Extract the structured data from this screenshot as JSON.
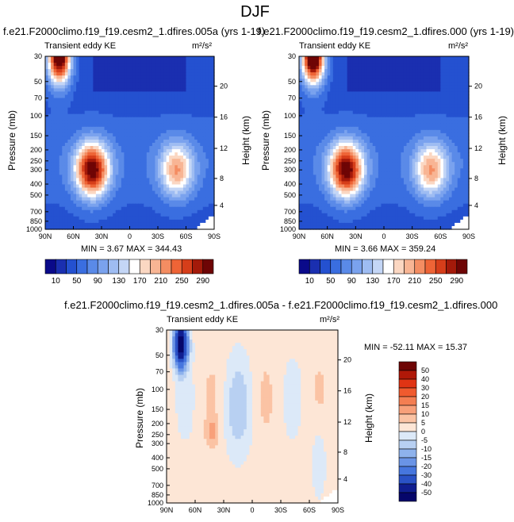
{
  "page": {
    "title": "DJF"
  },
  "panels": [
    {
      "title": "f.e21.F2000climo.f19_f19.cesm2_1.dfires.005a (yrs 1-19)",
      "left_label": "Transient eddy KE",
      "units": "m²/s²",
      "min_max": "MIN =  3.67  MAX = 344.43",
      "ylabel": "Pressure (mb)",
      "ylabel_right": "Height (km)"
    },
    {
      "title": "f.e21.F2000climo.f19_f19.cesm2_1.dfires.000 (yrs 1-19)",
      "left_label": "Transient eddy KE",
      "units": "m²/s²",
      "min_max": "MIN =  3.66  MAX = 359.24",
      "ylabel": "Pressure (mb)",
      "ylabel_right": "Height (km)"
    },
    {
      "title": "f.e21.F2000climo.f19_f19.cesm2_1.dfires.005a - f.e21.F2000climo.f19_f19.cesm2_1.dfires.000",
      "left_label": "Transient eddy KE",
      "units": "m²/s²",
      "min_max": "MIN = -52.11   MAX =  15.37",
      "ylabel": "Pressure (mb)",
      "ylabel_right": "Height (km)"
    }
  ],
  "chart_data": [
    {
      "type": "heatmap",
      "title": "f.e21.F2000climo.f19_f19.cesm2_1.dfires.005a (yrs 1-19)",
      "xlabel": "",
      "ylabel": "Pressure (mb)",
      "x_ticks": [
        "90N",
        "60N",
        "30N",
        "0",
        "30S",
        "60S",
        "90S"
      ],
      "y_ticks": [
        "30",
        "50",
        "70",
        "100",
        "150",
        "200",
        "250",
        "300",
        "400",
        "500",
        "700",
        "850",
        "1000"
      ],
      "y_right_ticks": [
        "20",
        "16",
        "12",
        "8",
        "4"
      ],
      "y_scale": "log",
      "ylim": [
        1000,
        30
      ],
      "xlim": [
        90,
        -90
      ],
      "min": 3.67,
      "max": 344.43,
      "features": [
        {
          "lat": 40,
          "p": 300,
          "value": 290
        },
        {
          "lat": -50,
          "p": 300,
          "value": 190
        },
        {
          "lat": 75,
          "p": 30,
          "value": 340
        }
      ],
      "colorbar_levels": [
        10,
        30,
        50,
        70,
        90,
        110,
        130,
        150,
        170,
        190,
        210,
        230,
        250,
        270,
        290
      ],
      "colorbar_labels": [
        "10",
        "50",
        "90",
        "130",
        "170",
        "210",
        "250",
        "290"
      ]
    },
    {
      "type": "heatmap",
      "title": "f.e21.F2000climo.f19_f19.cesm2_1.dfires.000 (yrs 1-19)",
      "xlabel": "",
      "ylabel": "Pressure (mb)",
      "x_ticks": [
        "90N",
        "60N",
        "30N",
        "0",
        "30S",
        "60S",
        "90S"
      ],
      "y_ticks": [
        "30",
        "50",
        "70",
        "100",
        "150",
        "200",
        "250",
        "300",
        "400",
        "500",
        "700",
        "850",
        "1000"
      ],
      "y_right_ticks": [
        "20",
        "16",
        "12",
        "8",
        "4"
      ],
      "y_scale": "log",
      "ylim": [
        1000,
        30
      ],
      "xlim": [
        90,
        -90
      ],
      "min": 3.66,
      "max": 359.24,
      "features": [
        {
          "lat": 40,
          "p": 300,
          "value": 290
        },
        {
          "lat": -50,
          "p": 300,
          "value": 190
        },
        {
          "lat": 75,
          "p": 30,
          "value": 355
        }
      ],
      "colorbar_levels": [
        10,
        30,
        50,
        70,
        90,
        110,
        130,
        150,
        170,
        190,
        210,
        230,
        250,
        270,
        290
      ],
      "colorbar_labels": [
        "10",
        "50",
        "90",
        "130",
        "170",
        "210",
        "250",
        "290"
      ]
    },
    {
      "type": "heatmap",
      "title": "f.e21.F2000climo.f19_f19.cesm2_1.dfires.005a - f.e21.F2000climo.f19_f19.cesm2_1.dfires.000",
      "xlabel": "",
      "ylabel": "Pressure (mb)",
      "x_ticks": [
        "90N",
        "60N",
        "30N",
        "0",
        "30S",
        "60S",
        "90S"
      ],
      "y_ticks": [
        "30",
        "50",
        "70",
        "100",
        "150",
        "200",
        "250",
        "300",
        "400",
        "500",
        "700",
        "850",
        "1000"
      ],
      "y_right_ticks": [
        "20",
        "16",
        "12",
        "8",
        "4"
      ],
      "y_scale": "log",
      "ylim": [
        1000,
        30
      ],
      "xlim": [
        90,
        -90
      ],
      "min": -52.11,
      "max": 15.37,
      "colorbar_levels": [
        -50,
        -40,
        -30,
        -20,
        -15,
        -10,
        -5,
        0,
        5,
        10,
        15,
        20,
        30,
        40,
        50
      ],
      "colorbar_labels": [
        "50",
        "40",
        "30",
        "20",
        "15",
        "10",
        "5",
        "0",
        "-5",
        "-10",
        "-15",
        "-20",
        "-30",
        "-40",
        "-50"
      ]
    }
  ],
  "colors": {
    "seq_palette": [
      "#0a0a8a",
      "#1a2fb0",
      "#2451d0",
      "#3a6ee0",
      "#5a8ae8",
      "#7aa2ee",
      "#9ebcf2",
      "#c4d6f6",
      "#ffffff",
      "#fbd7c2",
      "#f8b594",
      "#f48d62",
      "#ee6436",
      "#d63e1a",
      "#a41a0a",
      "#6e0505"
    ],
    "diff_palette": [
      "#6e0505",
      "#b01808",
      "#e03414",
      "#f05a2e",
      "#f47e52",
      "#f8a07a",
      "#fbc3a4",
      "#fde6d6",
      "#dce9f8",
      "#b8d0f2",
      "#8eb2ec",
      "#6a94e6",
      "#4676de",
      "#2a52c6",
      "#101e90",
      "#06066a"
    ]
  }
}
